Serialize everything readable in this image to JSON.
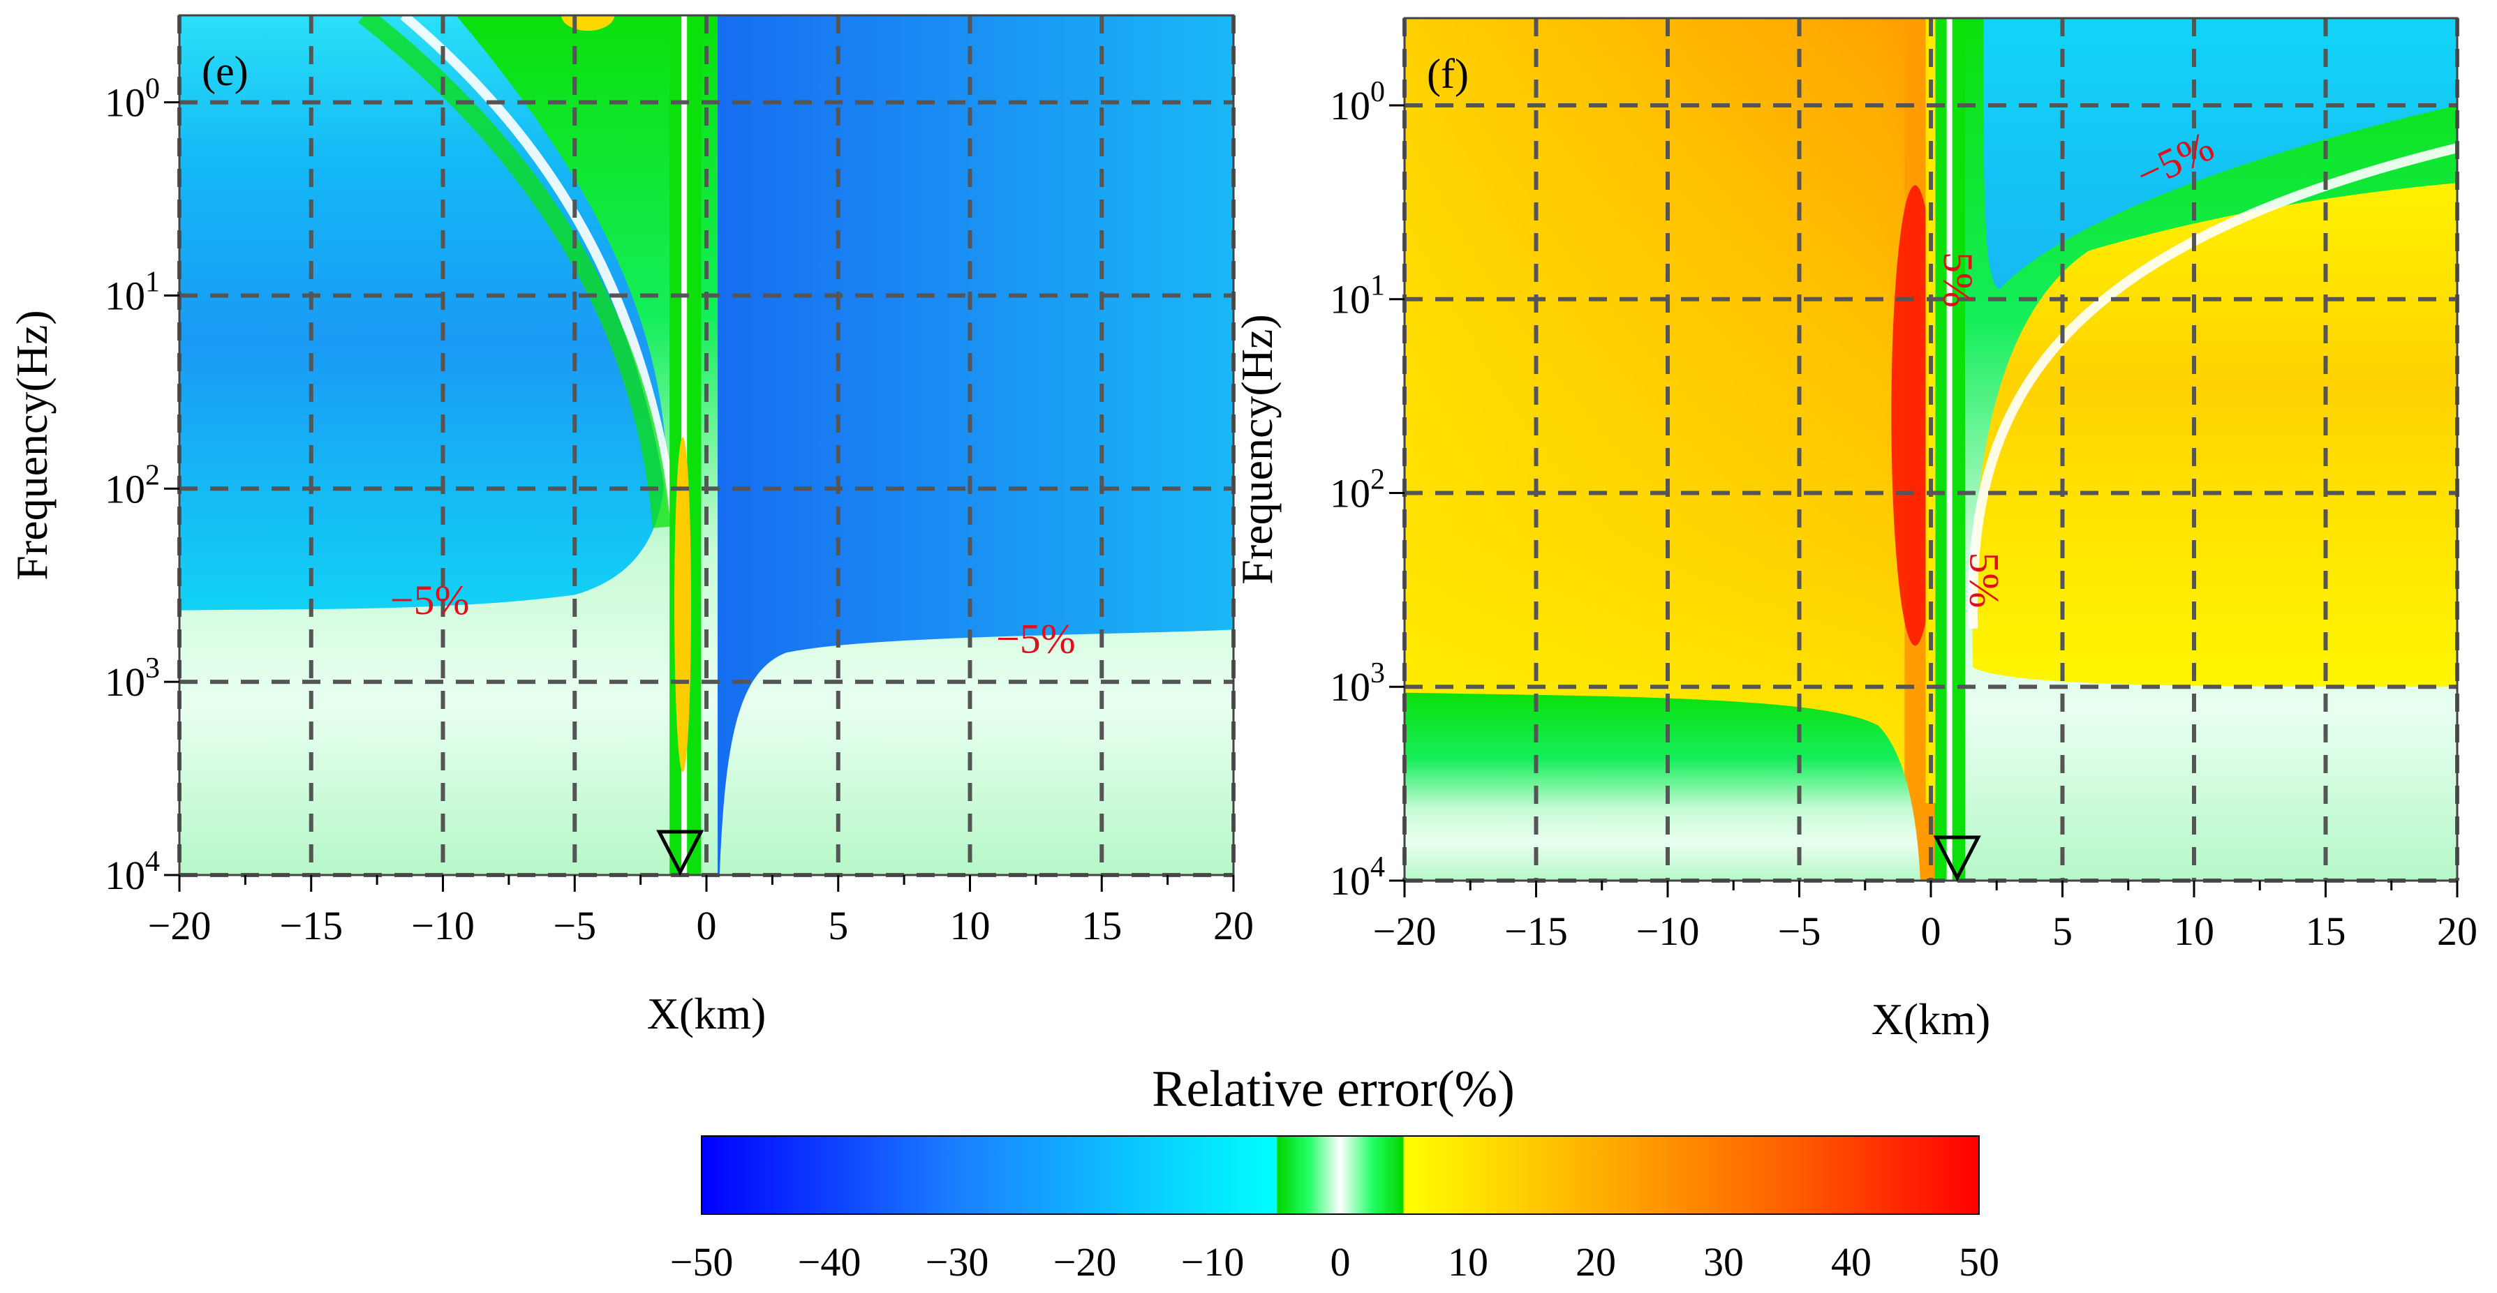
{
  "chart_data": [
    {
      "type": "heatmap",
      "panel": "(e)",
      "xlabel": "X(km)",
      "ylabel": "Frequency(Hz)",
      "xlim": [
        -20,
        20
      ],
      "x_ticks": [
        -20,
        -15,
        -10,
        -5,
        0,
        5,
        10,
        15,
        20
      ],
      "x_tick_labels": [
        "−20",
        "−15",
        "−10",
        "−5",
        "0",
        "5",
        "10",
        "15",
        "20"
      ],
      "y_ticks_log10": [
        0,
        1,
        2,
        3,
        4
      ],
      "y_tick_labels": [
        {
          "base": "10",
          "exp": "0"
        },
        {
          "base": "10",
          "exp": "1"
        },
        {
          "base": "10",
          "exp": "2"
        },
        {
          "base": "10",
          "exp": "3"
        },
        {
          "base": "10",
          "exp": "4"
        }
      ],
      "y_order": "increasing-downward",
      "grid": true,
      "receiver_x": -1,
      "contour_labels": [
        {
          "text": "−5%",
          "x": -10.5,
          "log_freq": 2.65
        },
        {
          "text": "−5%",
          "x": 12.5,
          "log_freq": 2.85
        }
      ]
    },
    {
      "type": "heatmap",
      "panel": "(f)",
      "xlabel": "X(km)",
      "ylabel": "Frequency(Hz)",
      "xlim": [
        -20,
        20
      ],
      "x_ticks": [
        -20,
        -15,
        -10,
        -5,
        0,
        5,
        10,
        15,
        20
      ],
      "x_tick_labels": [
        "−20",
        "−15",
        "−10",
        "−5",
        "0",
        "5",
        "10",
        "15",
        "20"
      ],
      "y_ticks_log10": [
        0,
        1,
        2,
        3,
        4
      ],
      "y_tick_labels": [
        {
          "base": "10",
          "exp": "0"
        },
        {
          "base": "10",
          "exp": "1"
        },
        {
          "base": "10",
          "exp": "2"
        },
        {
          "base": "10",
          "exp": "3"
        },
        {
          "base": "10",
          "exp": "4"
        }
      ],
      "y_order": "increasing-downward",
      "grid": true,
      "receiver_x": 1,
      "contour_labels": [
        {
          "text": "−5%",
          "x": 9.5,
          "log_freq": 0.35,
          "rotate": -25
        },
        {
          "text": "5%",
          "x": 0.5,
          "log_freq": 0.9,
          "rotate": 90
        },
        {
          "text": "5%",
          "x": 1.5,
          "log_freq": 2.45,
          "rotate": 90
        }
      ]
    }
  ],
  "colorbar": {
    "title": "Relative error(%)",
    "range": [
      -50,
      50
    ],
    "tick_values": [
      -50,
      -40,
      -30,
      -20,
      -10,
      0,
      10,
      20,
      30,
      40,
      50
    ],
    "tick_labels": [
      "−50",
      "−40",
      "−30",
      "−20",
      "−10",
      "0",
      "10",
      "20",
      "30",
      "40",
      "50"
    ],
    "stops": [
      {
        "value": -50,
        "color": "#0000ff"
      },
      {
        "value": -30,
        "color": "#1a7fff"
      },
      {
        "value": -5,
        "color": "#00ffff"
      },
      {
        "value": -4.9,
        "color": "#00d600"
      },
      {
        "value": -2.5,
        "color": "#22ff66"
      },
      {
        "value": 0,
        "color": "#ffffff"
      },
      {
        "value": 2.5,
        "color": "#22ff66"
      },
      {
        "value": 4.9,
        "color": "#00d600"
      },
      {
        "value": 5,
        "color": "#ffff00"
      },
      {
        "value": 20,
        "color": "#ffb000"
      },
      {
        "value": 35,
        "color": "#ff6000"
      },
      {
        "value": 50,
        "color": "#ff0000"
      }
    ]
  },
  "palette": {
    "blue_deep": "#1870f0",
    "blue": "#1a8cf5",
    "cyan": "#12d2f5",
    "green": "#0be00b",
    "green_light": "#7cf59a",
    "white": "#ffffff",
    "yellow": "#fdf200",
    "orange": "#ffb000",
    "red": "#ff2200",
    "contour_red": "#e0101a"
  }
}
